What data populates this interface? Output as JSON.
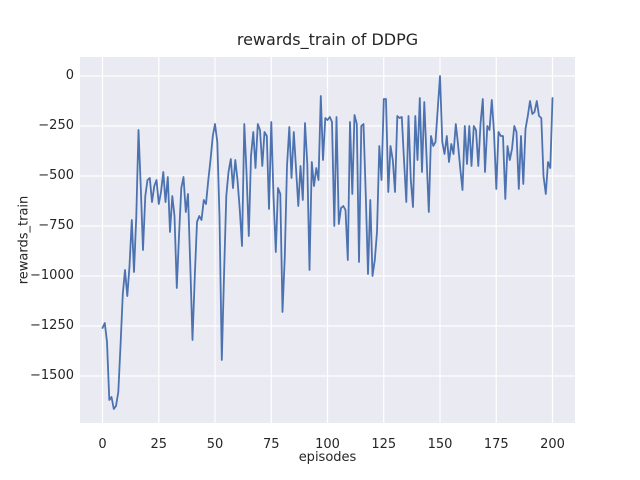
{
  "chart_data": {
    "type": "line",
    "title": "rewards_train of DDPG",
    "xlabel": "episodes",
    "ylabel": "rewards_train",
    "x_ticks": [
      0,
      25,
      50,
      75,
      100,
      125,
      150,
      175,
      200
    ],
    "x_tick_labels": [
      "0",
      "25",
      "50",
      "75",
      "100",
      "125",
      "150",
      "175",
      "200"
    ],
    "y_ticks": [
      0,
      -250,
      -500,
      -750,
      -1000,
      -1250,
      -1500
    ],
    "y_tick_labels": [
      "0",
      "−250",
      "−500",
      "−750",
      "−1000",
      "−1250",
      "−1500"
    ],
    "xlim": [
      -10,
      210
    ],
    "ylim": [
      -1735,
      95
    ],
    "grid": true,
    "legend": false,
    "style": "seaborn-darkgrid",
    "colors": {
      "line": "#4c72b0",
      "axes_background": "#eaeaf2",
      "grid": "#ffffff",
      "text": "#262626",
      "figure_background": "#ffffff"
    },
    "series": [
      {
        "name": "rewards_train",
        "x_start": 0,
        "x_step": 1,
        "values": [
          -1260,
          -1235,
          -1330,
          -1620,
          -1605,
          -1665,
          -1650,
          -1580,
          -1350,
          -1090,
          -970,
          -1100,
          -950,
          -720,
          -980,
          -700,
          -270,
          -560,
          -870,
          -600,
          -520,
          -510,
          -630,
          -550,
          -520,
          -640,
          -580,
          -480,
          -630,
          -505,
          -780,
          -600,
          -700,
          -1060,
          -800,
          -560,
          -505,
          -680,
          -590,
          -950,
          -1320,
          -1000,
          -730,
          -700,
          -720,
          -620,
          -640,
          -520,
          -420,
          -300,
          -240,
          -330,
          -700,
          -1420,
          -1000,
          -600,
          -480,
          -415,
          -560,
          -420,
          -520,
          -670,
          -850,
          -240,
          -480,
          -800,
          -400,
          -280,
          -460,
          -240,
          -270,
          -450,
          -280,
          -300,
          -665,
          -230,
          -600,
          -880,
          -560,
          -590,
          -1180,
          -900,
          -450,
          -255,
          -510,
          -280,
          -460,
          -650,
          -450,
          -620,
          -235,
          -440,
          -970,
          -430,
          -550,
          -460,
          -520,
          -100,
          -420,
          -210,
          -220,
          -205,
          -230,
          -750,
          -205,
          -740,
          -660,
          -650,
          -670,
          -920,
          -230,
          -590,
          -195,
          -240,
          -930,
          -250,
          -240,
          -600,
          -990,
          -620,
          -1000,
          -920,
          -780,
          -350,
          -520,
          -115,
          -115,
          -580,
          -350,
          -420,
          -580,
          -200,
          -210,
          -205,
          -420,
          -630,
          -200,
          -520,
          -655,
          -200,
          -420,
          -110,
          -480,
          -130,
          -400,
          -680,
          -300,
          -350,
          -330,
          -160,
          0,
          -330,
          -390,
          -300,
          -430,
          -340,
          -390,
          -240,
          -340,
          -465,
          -570,
          -250,
          -440,
          -250,
          -450,
          -250,
          -270,
          -450,
          -240,
          -115,
          -480,
          -250,
          -270,
          -120,
          -280,
          -565,
          -280,
          -300,
          -300,
          -615,
          -350,
          -420,
          -365,
          -250,
          -280,
          -565,
          -300,
          -540,
          -265,
          -200,
          -125,
          -190,
          -180,
          -125,
          -200,
          -210,
          -500,
          -590,
          -430,
          -460,
          -110
        ]
      }
    ]
  }
}
